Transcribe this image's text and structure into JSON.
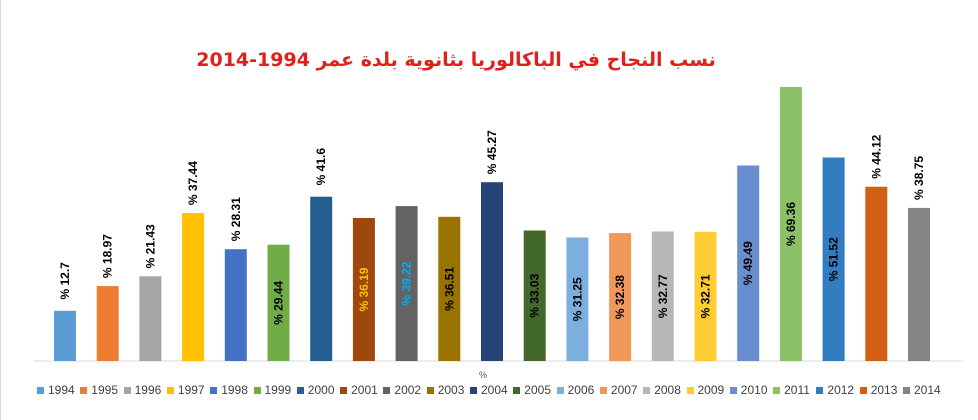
{
  "chart_data": {
    "type": "bar",
    "title": "نسب النجاح في الباكالوريا بثانوية بلدة عمر 1994-2014",
    "xlabel": "%",
    "ylabel": "",
    "ylim": [
      0,
      74
    ],
    "grid": false,
    "legend_position": "bottom",
    "label_prefix": "% ",
    "categories": [
      "1994",
      "1995",
      "1996",
      "1997",
      "1998",
      "1999",
      "2000",
      "2001",
      "2002",
      "2003",
      "2004",
      "2005",
      "2006",
      "2007",
      "2008",
      "2009",
      "2010",
      "2011",
      "2012",
      "2013",
      "2014"
    ],
    "values": [
      12.7,
      18.97,
      21.43,
      37.44,
      28.31,
      29.44,
      41.6,
      36.19,
      39.22,
      36.51,
      45.27,
      33.03,
      31.25,
      32.38,
      32.77,
      32.71,
      49.49,
      69.36,
      51.52,
      44.12,
      38.75
    ],
    "labels": [
      "12.7",
      "18.97",
      "21.43",
      "37.44",
      "28.31",
      "29.44",
      "41.6",
      "36.19",
      "39.22",
      "36.51",
      "45.27",
      "33.03",
      "31.25",
      "32.38",
      "32.77",
      "32.71",
      "49.49",
      "69.36",
      "51.52",
      "44.12",
      "38.75"
    ],
    "colors": [
      "#5b9bd5",
      "#ed7d31",
      "#a5a5a5",
      "#ffc000",
      "#4472c4",
      "#70ad47",
      "#255e91",
      "#9e480e",
      "#636363",
      "#997300",
      "#264478",
      "#43682b",
      "#7cafdd",
      "#f1975a",
      "#b7b7b7",
      "#ffcd33",
      "#698ed0",
      "#8cc168",
      "#327dc2",
      "#d26012",
      "#848484"
    ],
    "label_colors": [
      "#000000",
      "#000000",
      "#000000",
      "#000000",
      "#000000",
      "#000000",
      "#000000",
      "#ffc000",
      "#00b0f0",
      "#000000",
      "#000000",
      "#000000",
      "#000000",
      "#000000",
      "#000000",
      "#000000",
      "#000000",
      "#000000",
      "#000000",
      "#000000",
      "#000000"
    ],
    "label_inside": [
      false,
      false,
      false,
      false,
      false,
      true,
      false,
      true,
      true,
      true,
      false,
      true,
      true,
      true,
      true,
      true,
      true,
      true,
      true,
      false,
      false
    ]
  }
}
